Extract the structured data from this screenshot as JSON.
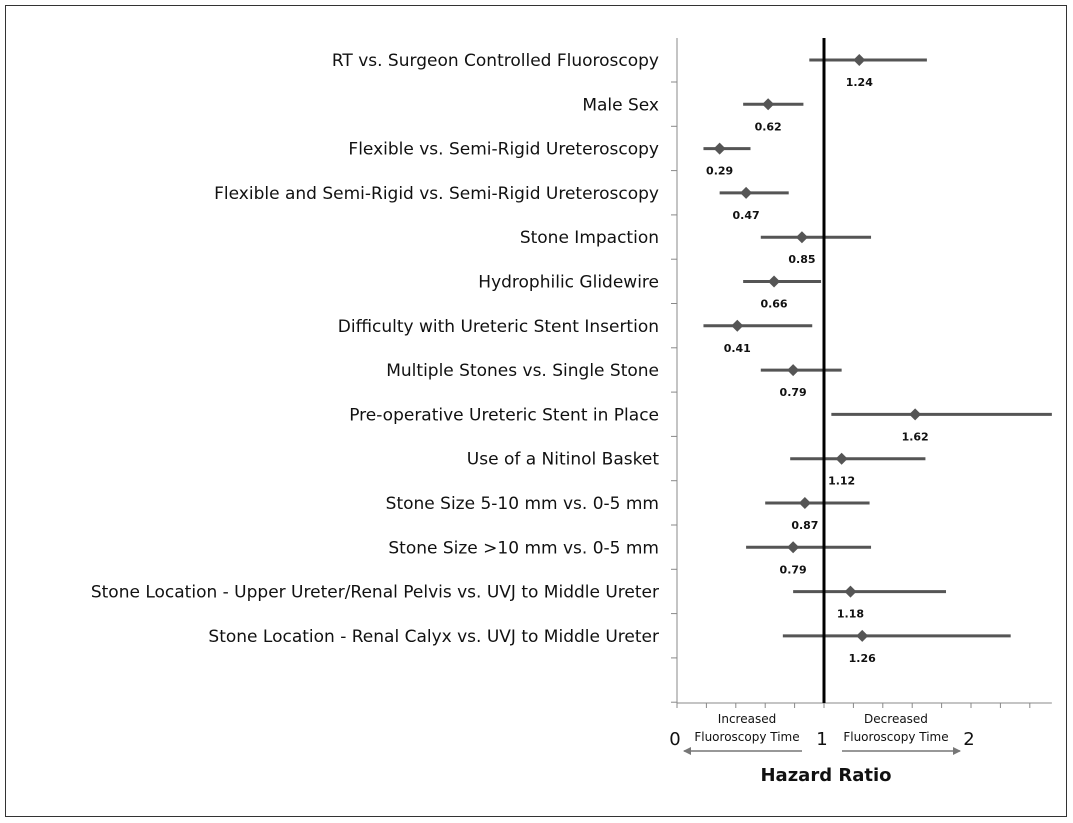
{
  "chart_data": {
    "type": "forest",
    "title": "",
    "xlabel": "Hazard Ratio",
    "xlim": [
      0,
      2.55
    ],
    "reference_line": 1,
    "x_ticks": [
      "0",
      "1",
      "2"
    ],
    "direction_labels": {
      "left": [
        "Increased",
        "Fluoroscopy Time"
      ],
      "right": [
        "Decreased",
        "Fluoroscopy Time"
      ]
    },
    "categories": [
      "RT vs. Surgeon Controlled Fluoroscopy",
      "Male Sex",
      "Flexible vs. Semi-Rigid Ureteroscopy",
      "Flexible and Semi-Rigid vs. Semi-Rigid Ureteroscopy",
      "Stone Impaction",
      "Hydrophilic Glidewire",
      "Difficulty with Ureteric Stent Insertion",
      "Multiple Stones vs. Single Stone",
      "Pre-operative Ureteric Stent in Place",
      "Use of a Nitinol Basket",
      "Stone Size 5-10 mm vs. 0-5 mm",
      "Stone Size >10 mm vs. 0-5 mm",
      "Stone Location - Upper Ureter/Renal Pelvis vs. UVJ to Middle Ureter",
      "Stone Location - Renal Calyx vs. UVJ to Middle Ureter"
    ],
    "values": [
      1.24,
      0.62,
      0.29,
      0.47,
      0.85,
      0.66,
      0.41,
      0.79,
      1.62,
      1.12,
      0.87,
      0.79,
      1.18,
      1.26
    ],
    "value_labels": [
      "1.24",
      "0.62",
      "0.29",
      "0.47",
      "0.85",
      "0.66",
      "0.41",
      "0.79",
      "1.62",
      "1.12",
      "0.87",
      "0.79",
      "1.18",
      "1.26"
    ],
    "ci_lower": [
      0.9,
      0.45,
      0.18,
      0.29,
      0.57,
      0.45,
      0.18,
      0.57,
      1.05,
      0.77,
      0.6,
      0.47,
      0.79,
      0.72
    ],
    "ci_upper": [
      1.7,
      0.86,
      0.5,
      0.76,
      1.32,
      0.98,
      0.92,
      1.12,
      2.55,
      1.69,
      1.31,
      1.32,
      1.83,
      2.27
    ],
    "colors": {
      "marker": "#555555",
      "ci": "#555555",
      "reference": "#000000",
      "axis": "#888888"
    }
  }
}
